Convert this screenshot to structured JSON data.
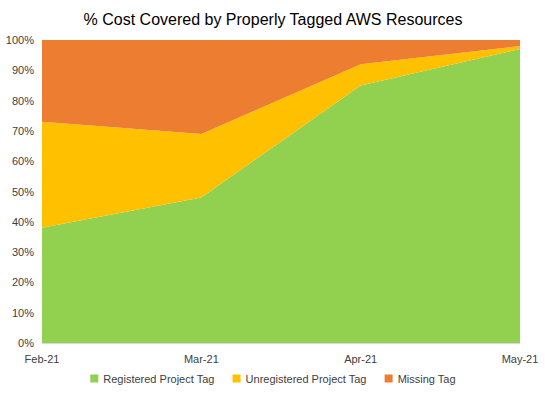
{
  "chart_data": {
    "type": "area",
    "title": "% Cost Covered by Properly Tagged AWS Resources",
    "categories": [
      "Feb-21",
      "Mar-21",
      "Apr-21",
      "May-21"
    ],
    "series": [
      {
        "name": "Registered Project Tag",
        "color": "#92D050",
        "values": [
          38,
          48,
          85,
          97
        ]
      },
      {
        "name": "Unregistered Project Tag",
        "color": "#FFC000",
        "values": [
          35,
          21,
          7,
          1
        ]
      },
      {
        "name": "Missing Tag",
        "color": "#ED7D31",
        "values": [
          27,
          31,
          8,
          2
        ]
      }
    ],
    "ylim": [
      0,
      100
    ],
    "yticks": [
      {
        "value": 0,
        "label": "0%"
      },
      {
        "value": 10,
        "label": "10%"
      },
      {
        "value": 20,
        "label": "20%"
      },
      {
        "value": 30,
        "label": "30%"
      },
      {
        "value": 40,
        "label": "40%"
      },
      {
        "value": 50,
        "label": "50%"
      },
      {
        "value": 60,
        "label": "60%"
      },
      {
        "value": 70,
        "label": "70%"
      },
      {
        "value": 80,
        "label": "80%"
      },
      {
        "value": 90,
        "label": "90%"
      },
      {
        "value": 100,
        "label": "100%"
      }
    ],
    "stacked": true,
    "grid": false,
    "legend": "bottom"
  }
}
